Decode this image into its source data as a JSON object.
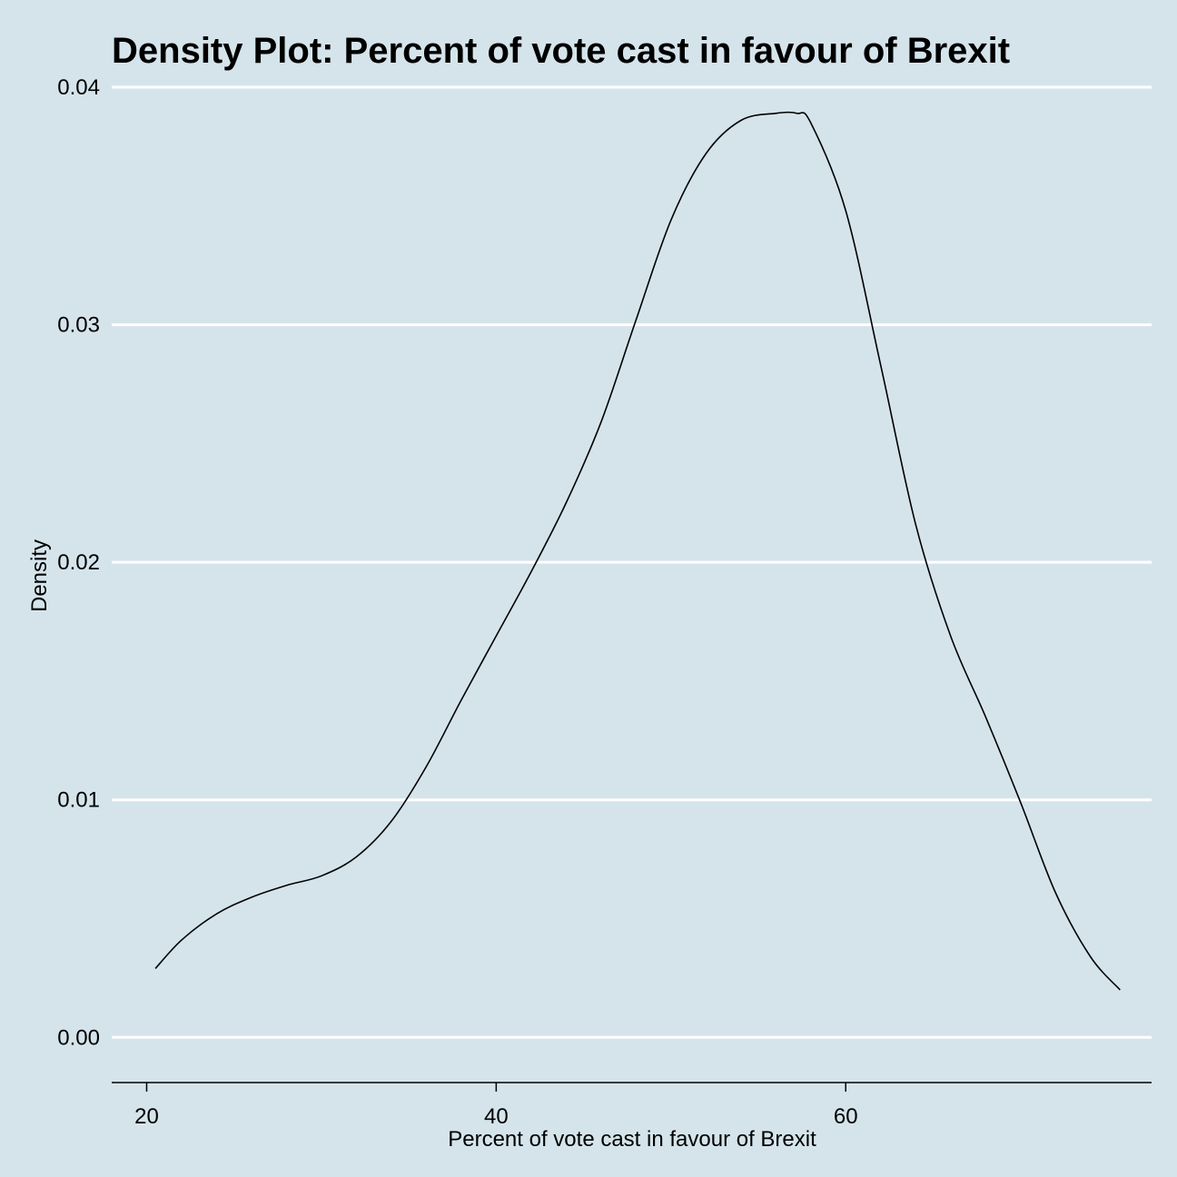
{
  "chart_data": {
    "type": "line",
    "title": "Density Plot: Percent of vote cast in favour of Brexit",
    "xlabel": "Percent of vote cast in favour of Brexit",
    "ylabel": "Density",
    "xlim": [
      18,
      77.5
    ],
    "ylim": [
      -0.0019,
      0.04
    ],
    "x_ticks": [
      20,
      40,
      60
    ],
    "x_tick_labels": [
      "20",
      "40",
      "60"
    ],
    "y_ticks": [
      0,
      0.01,
      0.02,
      0.03,
      0.04
    ],
    "y_tick_labels": [
      "0.00",
      "0.01",
      "0.02",
      "0.03",
      "0.04"
    ],
    "grid": "horizontal",
    "colors": {
      "background": "#d5e4eb",
      "grid": "#ffffff",
      "line": "#000000"
    },
    "series": [
      {
        "x": [
          20.5,
          22,
          24,
          26,
          28,
          30,
          32,
          34,
          36,
          38,
          40,
          42,
          44,
          46,
          48,
          50,
          52,
          54,
          56,
          57.2,
          58,
          60,
          62,
          64,
          66,
          68,
          70,
          72,
          74,
          75.7
        ],
        "y": [
          0.0029,
          0.0041,
          0.0052,
          0.0059,
          0.0064,
          0.0068,
          0.0076,
          0.0091,
          0.0114,
          0.0142,
          0.0169,
          0.0196,
          0.0225,
          0.0259,
          0.0302,
          0.0344,
          0.0372,
          0.0386,
          0.0389,
          0.0389,
          0.0385,
          0.0348,
          0.0283,
          0.0216,
          0.0169,
          0.0135,
          0.0099,
          0.0061,
          0.0034,
          0.002
        ]
      }
    ]
  }
}
